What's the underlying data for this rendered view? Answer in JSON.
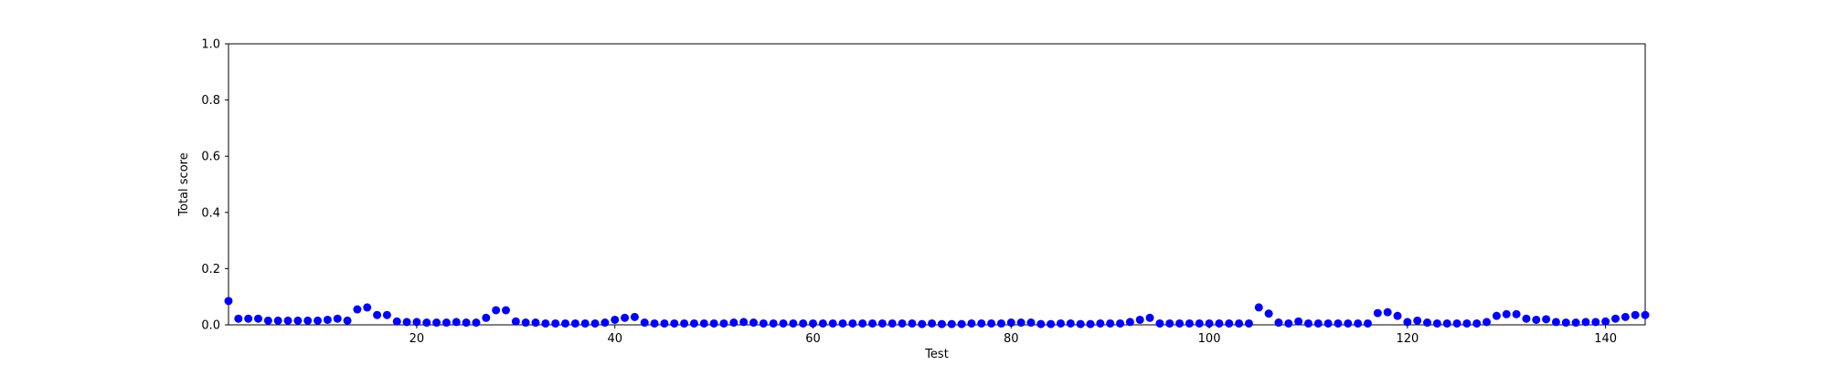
{
  "chart_data": {
    "type": "scatter",
    "title": "",
    "xlabel": "Test",
    "ylabel": "Total score",
    "xlim": [
      1,
      144
    ],
    "ylim": [
      0.0,
      1.0
    ],
    "x_ticks": [
      20,
      40,
      60,
      80,
      100,
      120,
      140
    ],
    "x_tick_labels": [
      "20",
      "40",
      "60",
      "80",
      "100",
      "120",
      "140"
    ],
    "y_ticks": [
      0.0,
      0.2,
      0.4,
      0.6,
      0.8,
      1.0
    ],
    "y_tick_labels": [
      "0.0",
      "0.2",
      "0.4",
      "0.6",
      "0.8",
      "1.0"
    ],
    "grid": false,
    "marker_color": "#0000ff",
    "series": [
      {
        "x": [
          1,
          2,
          3,
          4,
          5,
          6,
          7,
          8,
          9,
          10,
          11,
          12,
          13,
          14,
          15,
          16,
          17,
          18,
          19,
          20,
          21,
          22,
          23,
          24,
          25,
          26,
          27,
          28,
          29,
          30,
          31,
          32,
          33,
          34,
          35,
          36,
          37,
          38,
          39,
          40,
          41,
          42,
          43,
          44,
          45,
          46,
          47,
          48,
          49,
          50,
          51,
          52,
          53,
          54,
          55,
          56,
          57,
          58,
          59,
          60,
          61,
          62,
          63,
          64,
          65,
          66,
          67,
          68,
          69,
          70,
          71,
          72,
          73,
          74,
          75,
          76,
          77,
          78,
          79,
          80,
          81,
          82,
          83,
          84,
          85,
          86,
          87,
          88,
          89,
          90,
          91,
          92,
          93,
          94,
          95,
          96,
          97,
          98,
          99,
          100,
          101,
          102,
          103,
          104,
          105,
          106,
          107,
          108,
          109,
          110,
          111,
          112,
          113,
          114,
          115,
          116,
          117,
          118,
          119,
          120,
          121,
          122,
          123,
          124,
          125,
          126,
          127,
          128,
          129,
          130,
          131,
          132,
          133,
          134,
          135,
          136,
          137,
          138,
          139,
          140,
          141,
          142,
          143,
          144
        ],
        "y": [
          0.085,
          0.022,
          0.022,
          0.022,
          0.015,
          0.015,
          0.015,
          0.015,
          0.015,
          0.015,
          0.018,
          0.022,
          0.015,
          0.055,
          0.062,
          0.035,
          0.035,
          0.012,
          0.01,
          0.01,
          0.008,
          0.008,
          0.008,
          0.01,
          0.008,
          0.008,
          0.025,
          0.052,
          0.052,
          0.012,
          0.008,
          0.008,
          0.005,
          0.005,
          0.005,
          0.005,
          0.005,
          0.005,
          0.008,
          0.018,
          0.025,
          0.028,
          0.008,
          0.005,
          0.005,
          0.005,
          0.005,
          0.005,
          0.005,
          0.005,
          0.005,
          0.008,
          0.01,
          0.008,
          0.005,
          0.005,
          0.005,
          0.005,
          0.005,
          0.005,
          0.005,
          0.005,
          0.005,
          0.005,
          0.005,
          0.005,
          0.005,
          0.005,
          0.005,
          0.005,
          0.003,
          0.005,
          0.003,
          0.003,
          0.003,
          0.005,
          0.005,
          0.005,
          0.005,
          0.008,
          0.008,
          0.008,
          0.003,
          0.003,
          0.005,
          0.005,
          0.003,
          0.003,
          0.005,
          0.005,
          0.005,
          0.01,
          0.018,
          0.025,
          0.005,
          0.005,
          0.005,
          0.005,
          0.005,
          0.005,
          0.005,
          0.005,
          0.005,
          0.005,
          0.062,
          0.04,
          0.008,
          0.005,
          0.012,
          0.005,
          0.005,
          0.005,
          0.005,
          0.005,
          0.005,
          0.005,
          0.042,
          0.045,
          0.032,
          0.01,
          0.015,
          0.008,
          0.005,
          0.005,
          0.005,
          0.005,
          0.005,
          0.01,
          0.032,
          0.038,
          0.038,
          0.022,
          0.018,
          0.02,
          0.01,
          0.008,
          0.008,
          0.01,
          0.01,
          0.012,
          0.022,
          0.028,
          0.035,
          0.035
        ]
      }
    ]
  }
}
